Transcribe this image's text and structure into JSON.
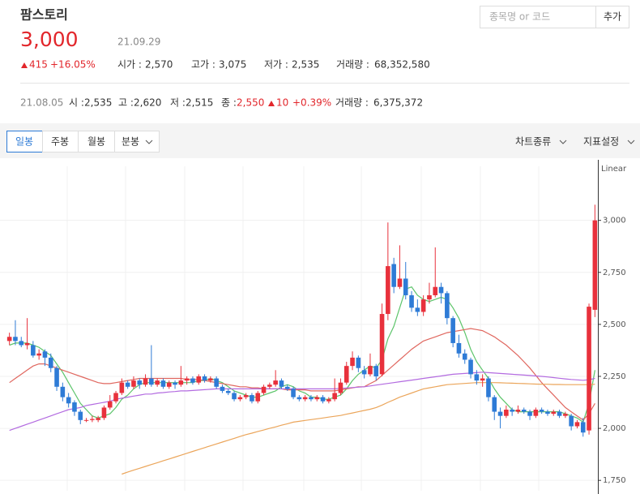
{
  "header": {
    "name": "팜스토리",
    "price": "3,000",
    "date": "21.09.29",
    "change": "415",
    "change_pct": "+16.05%",
    "stats": [
      {
        "label": "시가 :",
        "value": "2,570"
      },
      {
        "label": "고가 :",
        "value": "3,075"
      },
      {
        "label": "저가 :",
        "value": "2,535"
      },
      {
        "label": "거래량 :",
        "value": "68,352,580"
      }
    ],
    "search_placeholder": "종목명 or 코드",
    "add_button": "추가"
  },
  "detail": {
    "date": "21.08.05",
    "stats": [
      {
        "label": "시 :",
        "value": "2,535"
      },
      {
        "label": "고 :",
        "value": "2,620"
      },
      {
        "label": "저 :",
        "value": "2,515"
      },
      {
        "label": "종 :",
        "value": "2,550"
      }
    ],
    "change": "10",
    "change_pct": "+0.39%",
    "volume_label": "거래량 :",
    "volume": "6,375,372"
  },
  "tabs": [
    "일봉",
    "주봉",
    "월봉",
    "분봉"
  ],
  "menus": [
    "차트종류",
    "지표설정"
  ],
  "chart_data": {
    "type": "candlestick",
    "scale_label": "Linear",
    "ylim": [
      1700,
      3260
    ],
    "yticks": [
      {
        "value": 1750,
        "label": "1,750"
      },
      {
        "value": 2000,
        "label": "2,000"
      },
      {
        "value": 2250,
        "label": "2,250"
      },
      {
        "value": 2500,
        "label": "2,500"
      },
      {
        "value": 2750,
        "label": "2,750"
      },
      {
        "value": 3000,
        "label": "3,000"
      }
    ],
    "grid": true,
    "up_color": "#e8313c",
    "down_color": "#2e7bd6",
    "candles": [
      [
        2420,
        2460,
        2400,
        2440
      ],
      [
        2440,
        2520,
        2400,
        2420
      ],
      [
        2420,
        2440,
        2390,
        2400
      ],
      [
        2400,
        2530,
        2380,
        2410
      ],
      [
        2400,
        2420,
        2340,
        2350
      ],
      [
        2350,
        2380,
        2330,
        2360
      ],
      [
        2370,
        2380,
        2300,
        2340
      ],
      [
        2340,
        2360,
        2270,
        2290
      ],
      [
        2290,
        2300,
        2180,
        2200
      ],
      [
        2200,
        2220,
        2130,
        2150
      ],
      [
        2150,
        2170,
        2100,
        2120
      ],
      [
        2125,
        2135,
        2060,
        2080
      ],
      [
        2080,
        2090,
        2020,
        2040
      ],
      [
        2040,
        2050,
        2030,
        2040
      ],
      [
        2040,
        2060,
        2030,
        2045
      ],
      [
        2040,
        2060,
        2030,
        2050
      ],
      [
        2050,
        2110,
        2040,
        2100
      ],
      [
        2100,
        2160,
        2090,
        2130
      ],
      [
        2130,
        2180,
        2120,
        2170
      ],
      [
        2170,
        2240,
        2160,
        2220
      ],
      [
        2220,
        2230,
        2190,
        2200
      ],
      [
        2200,
        2250,
        2190,
        2230
      ],
      [
        2230,
        2240,
        2190,
        2210
      ],
      [
        2210,
        2260,
        2200,
        2240
      ],
      [
        2240,
        2400,
        2200,
        2210
      ],
      [
        2210,
        2240,
        2200,
        2230
      ],
      [
        2230,
        2240,
        2190,
        2200
      ],
      [
        2200,
        2230,
        2190,
        2220
      ],
      [
        2220,
        2230,
        2190,
        2210
      ],
      [
        2210,
        2300,
        2200,
        2230
      ],
      [
        2230,
        2250,
        2210,
        2240
      ],
      [
        2240,
        2250,
        2210,
        2220
      ],
      [
        2220,
        2260,
        2210,
        2250
      ],
      [
        2250,
        2260,
        2220,
        2230
      ],
      [
        2230,
        2250,
        2220,
        2240
      ],
      [
        2240,
        2250,
        2190,
        2200
      ],
      [
        2200,
        2210,
        2170,
        2180
      ],
      [
        2180,
        2190,
        2160,
        2170
      ],
      [
        2170,
        2180,
        2130,
        2140
      ],
      [
        2140,
        2160,
        2130,
        2150
      ],
      [
        2150,
        2170,
        2140,
        2160
      ],
      [
        2160,
        2170,
        2120,
        2130
      ],
      [
        2130,
        2180,
        2120,
        2170
      ],
      [
        2170,
        2210,
        2160,
        2200
      ],
      [
        2200,
        2220,
        2190,
        2210
      ],
      [
        2210,
        2280,
        2200,
        2230
      ],
      [
        2230,
        2240,
        2190,
        2200
      ],
      [
        2200,
        2210,
        2180,
        2190
      ],
      [
        2190,
        2200,
        2140,
        2150
      ],
      [
        2150,
        2160,
        2130,
        2140
      ],
      [
        2140,
        2160,
        2130,
        2150
      ],
      [
        2150,
        2160,
        2130,
        2140
      ],
      [
        2140,
        2160,
        2130,
        2150
      ],
      [
        2150,
        2160,
        2120,
        2130
      ],
      [
        2130,
        2150,
        2120,
        2140
      ],
      [
        2140,
        2240,
        2130,
        2170
      ],
      [
        2170,
        2240,
        2160,
        2220
      ],
      [
        2220,
        2320,
        2210,
        2300
      ],
      [
        2300,
        2370,
        2280,
        2340
      ],
      [
        2340,
        2350,
        2270,
        2290
      ],
      [
        2280,
        2300,
        2240,
        2260
      ],
      [
        2260,
        2360,
        2250,
        2300
      ],
      [
        2300,
        2310,
        2230,
        2250
      ],
      [
        2260,
        2600,
        2250,
        2550
      ],
      [
        2550,
        2990,
        2520,
        2780
      ],
      [
        2790,
        2820,
        2650,
        2680
      ],
      [
        2680,
        2880,
        2670,
        2720
      ],
      [
        2720,
        2800,
        2620,
        2640
      ],
      [
        2640,
        2660,
        2560,
        2580
      ],
      [
        2580,
        2620,
        2540,
        2560
      ],
      [
        2560,
        2640,
        2540,
        2620
      ],
      [
        2620,
        2700,
        2600,
        2640
      ],
      [
        2640,
        2870,
        2630,
        2680
      ],
      [
        2680,
        2700,
        2600,
        2650
      ],
      [
        2650,
        2660,
        2500,
        2530
      ],
      [
        2530,
        2540,
        2390,
        2410
      ],
      [
        2410,
        2450,
        2340,
        2360
      ],
      [
        2360,
        2380,
        2310,
        2330
      ],
      [
        2330,
        2340,
        2240,
        2260
      ],
      [
        2260,
        2280,
        2210,
        2230
      ],
      [
        2230,
        2260,
        2200,
        2240
      ],
      [
        2240,
        2250,
        2130,
        2150
      ],
      [
        2150,
        2160,
        2040,
        2080
      ],
      [
        2080,
        2100,
        2000,
        2060
      ],
      [
        2060,
        2110,
        2050,
        2090
      ],
      [
        2090,
        2100,
        2060,
        2080
      ],
      [
        2080,
        2110,
        2070,
        2090
      ],
      [
        2090,
        2100,
        2070,
        2080
      ],
      [
        2080,
        2090,
        2040,
        2060
      ],
      [
        2060,
        2100,
        2050,
        2090
      ],
      [
        2090,
        2100,
        2070,
        2080
      ],
      [
        2080,
        2090,
        2060,
        2070
      ],
      [
        2070,
        2090,
        2060,
        2080
      ],
      [
        2080,
        2090,
        2050,
        2060
      ],
      [
        2060,
        2080,
        2050,
        2070
      ],
      [
        2060,
        2070,
        1990,
        2010
      ],
      [
        2010,
        2040,
        2000,
        2030
      ],
      [
        2030,
        2050,
        1960,
        1980
      ],
      [
        1990,
        2600,
        1970,
        2585
      ],
      [
        2570,
        3075,
        2535,
        3000
      ]
    ],
    "series": [
      {
        "color": "#5cc46a",
        "values": [
          2400,
          2410,
          2410,
          2410,
          2400,
          2390,
          2370,
          2350,
          2310,
          2270,
          2220,
          2170,
          2120,
          2090,
          2060,
          2050,
          2060,
          2070,
          2100,
          2140,
          2160,
          2190,
          2210,
          2220,
          2220,
          2220,
          2220,
          2220,
          2220,
          2220,
          2220,
          2220,
          2230,
          2230,
          2240,
          2230,
          2220,
          2200,
          2180,
          2170,
          2160,
          2150,
          2150,
          2160,
          2170,
          2180,
          2200,
          2210,
          2200,
          2180,
          2170,
          2150,
          2150,
          2140,
          2140,
          2150,
          2160,
          2190,
          2230,
          2260,
          2280,
          2300,
          2290,
          2330,
          2430,
          2490,
          2580,
          2670,
          2680,
          2640,
          2620,
          2610,
          2620,
          2630,
          2620,
          2580,
          2530,
          2460,
          2380,
          2320,
          2280,
          2240,
          2190,
          2150,
          2120,
          2090,
          2080,
          2080,
          2080,
          2080,
          2080,
          2080,
          2080,
          2080,
          2070,
          2060,
          2050,
          2030,
          2120,
          2280
        ]
      },
      {
        "color": "#e0675f",
        "values": [
          2220,
          2240,
          2260,
          2280,
          2300,
          2310,
          2310,
          2300,
          2290,
          2280,
          2270,
          2260,
          2250,
          2240,
          2230,
          2220,
          2215,
          2215,
          2220,
          2225,
          2230,
          2235,
          2240,
          2240,
          2240,
          2240,
          2240,
          2240,
          2240,
          2240,
          2235,
          2235,
          2235,
          2230,
          2225,
          2220,
          2215,
          2210,
          2205,
          2200,
          2200,
          2195,
          2195,
          2190,
          2190,
          2190,
          2190,
          2185,
          2185,
          2185,
          2185,
          2180,
          2180,
          2180,
          2180,
          2180,
          2185,
          2190,
          2195,
          2200,
          2200,
          2215,
          2230,
          2255,
          2280,
          2305,
          2330,
          2355,
          2380,
          2400,
          2420,
          2430,
          2440,
          2450,
          2460,
          2465,
          2470,
          2475,
          2480,
          2475,
          2470,
          2455,
          2440,
          2420,
          2400,
          2375,
          2350,
          2320,
          2290,
          2255,
          2220,
          2190,
          2160,
          2130,
          2100,
          2080,
          2060,
          2040,
          2070,
          2120
        ]
      },
      {
        "color": "#b36be0",
        "values": [
          1990,
          2000,
          2010,
          2020,
          2030,
          2040,
          2050,
          2060,
          2070,
          2080,
          2090,
          2095,
          2100,
          2110,
          2115,
          2120,
          2125,
          2130,
          2140,
          2145,
          2150,
          2155,
          2160,
          2165,
          2165,
          2170,
          2172,
          2175,
          2177,
          2180,
          2180,
          2182,
          2184,
          2186,
          2188,
          2190,
          2190,
          2190,
          2190,
          2190,
          2190,
          2190,
          2190,
          2190,
          2190,
          2190,
          2190,
          2190,
          2190,
          2190,
          2190,
          2190,
          2190,
          2190,
          2190,
          2190,
          2192,
          2194,
          2196,
          2198,
          2200,
          2204,
          2208,
          2212,
          2216,
          2220,
          2224,
          2228,
          2232,
          2236,
          2240,
          2244,
          2248,
          2252,
          2256,
          2260,
          2262,
          2264,
          2266,
          2268,
          2270,
          2268,
          2266,
          2264,
          2262,
          2260,
          2258,
          2256,
          2254,
          2252,
          2250,
          2247,
          2244,
          2241,
          2238,
          2235,
          2233,
          2231,
          2234,
          2240
        ]
      },
      {
        "color": "#eba55a",
        "values": [
          null,
          null,
          null,
          null,
          null,
          null,
          null,
          null,
          null,
          null,
          null,
          null,
          null,
          null,
          null,
          null,
          null,
          null,
          null,
          1780,
          1790,
          1799,
          1808,
          1817,
          1826,
          1835,
          1844,
          1853,
          1862,
          1871,
          1880,
          1889,
          1898,
          1907,
          1916,
          1925,
          1934,
          1943,
          1952,
          1961,
          1970,
          1977,
          1985,
          1992,
          2000,
          2007,
          2015,
          2022,
          2030,
          2034,
          2038,
          2042,
          2046,
          2050,
          2054,
          2058,
          2062,
          2068,
          2074,
          2080,
          2086,
          2092,
          2100,
          2112,
          2125,
          2137,
          2150,
          2160,
          2170,
          2180,
          2190,
          2195,
          2200,
          2205,
          2210,
          2212,
          2214,
          2216,
          2218,
          2220,
          2220,
          2220,
          2220,
          2219,
          2218,
          2217,
          2216,
          2215,
          2214,
          2213,
          2212,
          2212,
          2211,
          2211,
          2210,
          2210,
          2210,
          2210,
          2210,
          2212
        ]
      }
    ]
  }
}
